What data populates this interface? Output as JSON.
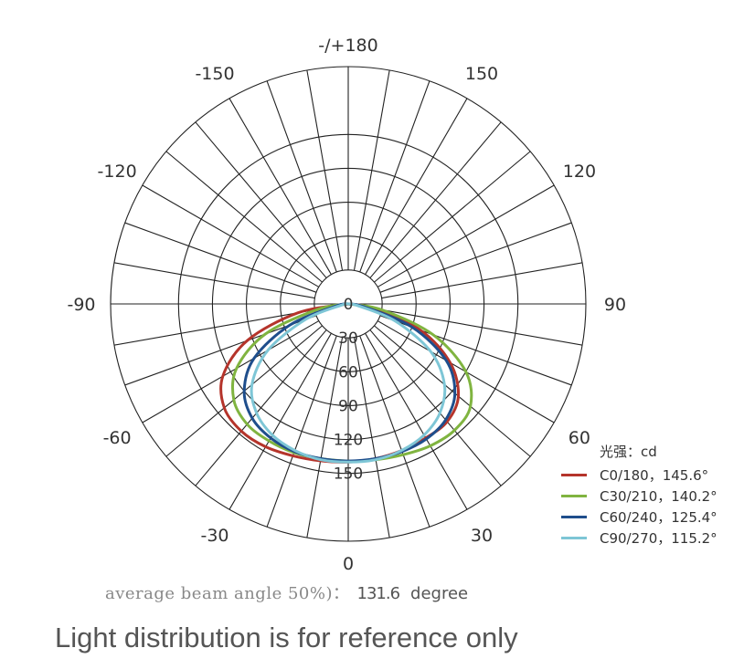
{
  "chart_data": {
    "type": "polar",
    "angle_ticks": [
      "-/+180",
      "150",
      "120",
      "90",
      "60",
      "30",
      "0",
      "-30",
      "-60",
      "-90",
      "-120",
      "-150"
    ],
    "radial_ticks": [
      0,
      30,
      60,
      90,
      120,
      150
    ],
    "radial_max": 210,
    "radial_tick_labels": [
      "0",
      "30",
      "60",
      "90",
      "120",
      "150"
    ],
    "angle_step": 10,
    "grid": true,
    "legend": {
      "title": "光强：cd",
      "placement": "bottom-right"
    },
    "series": [
      {
        "name": "C0/180，145.6°",
        "color": "#b5342b",
        "points": [
          {
            "angle": -90,
            "value": 0
          },
          {
            "angle": -80,
            "value": 45
          },
          {
            "angle": -70,
            "value": 95
          },
          {
            "angle": -60,
            "value": 128
          },
          {
            "angle": -50,
            "value": 143
          },
          {
            "angle": -40,
            "value": 147
          },
          {
            "angle": -30,
            "value": 146
          },
          {
            "angle": -20,
            "value": 143
          },
          {
            "angle": -10,
            "value": 141
          },
          {
            "angle": 0,
            "value": 140
          },
          {
            "angle": 10,
            "value": 139
          },
          {
            "angle": 20,
            "value": 138
          },
          {
            "angle": 30,
            "value": 137
          },
          {
            "angle": 40,
            "value": 136
          },
          {
            "angle": 50,
            "value": 127
          },
          {
            "angle": 60,
            "value": 104
          },
          {
            "angle": 70,
            "value": 68
          },
          {
            "angle": 80,
            "value": 22
          },
          {
            "angle": 90,
            "value": 0
          }
        ]
      },
      {
        "name": "C30/210，140.2°",
        "color": "#80b440",
        "points": [
          {
            "angle": -90,
            "value": 0
          },
          {
            "angle": -80,
            "value": 27
          },
          {
            "angle": -70,
            "value": 78
          },
          {
            "angle": -60,
            "value": 114
          },
          {
            "angle": -50,
            "value": 132
          },
          {
            "angle": -40,
            "value": 139
          },
          {
            "angle": -30,
            "value": 140
          },
          {
            "angle": -20,
            "value": 140
          },
          {
            "angle": -10,
            "value": 139
          },
          {
            "angle": 0,
            "value": 139
          },
          {
            "angle": 10,
            "value": 140
          },
          {
            "angle": 20,
            "value": 142
          },
          {
            "angle": 30,
            "value": 145
          },
          {
            "angle": 40,
            "value": 146
          },
          {
            "angle": 50,
            "value": 141
          },
          {
            "angle": 60,
            "value": 120
          },
          {
            "angle": 70,
            "value": 80
          },
          {
            "angle": 80,
            "value": 30
          },
          {
            "angle": 90,
            "value": 0
          }
        ]
      },
      {
        "name": "C60/240，125.4°",
        "color": "#1f4e8c",
        "points": [
          {
            "angle": -90,
            "value": 0
          },
          {
            "angle": -80,
            "value": 12
          },
          {
            "angle": -70,
            "value": 55
          },
          {
            "angle": -60,
            "value": 96
          },
          {
            "angle": -50,
            "value": 120
          },
          {
            "angle": -40,
            "value": 132
          },
          {
            "angle": -30,
            "value": 137
          },
          {
            "angle": -20,
            "value": 139
          },
          {
            "angle": -10,
            "value": 139
          },
          {
            "angle": 0,
            "value": 139
          },
          {
            "angle": 10,
            "value": 139
          },
          {
            "angle": 20,
            "value": 139
          },
          {
            "angle": 30,
            "value": 138
          },
          {
            "angle": 40,
            "value": 134
          },
          {
            "angle": 50,
            "value": 123
          },
          {
            "angle": 60,
            "value": 100
          },
          {
            "angle": 70,
            "value": 60
          },
          {
            "angle": 80,
            "value": 14
          },
          {
            "angle": 90,
            "value": 0
          }
        ]
      },
      {
        "name": "C90/270，115.2°",
        "color": "#7ec6d6",
        "points": [
          {
            "angle": -90,
            "value": 0
          },
          {
            "angle": -80,
            "value": 6
          },
          {
            "angle": -70,
            "value": 40
          },
          {
            "angle": -60,
            "value": 82
          },
          {
            "angle": -50,
            "value": 111
          },
          {
            "angle": -40,
            "value": 126
          },
          {
            "angle": -30,
            "value": 134
          },
          {
            "angle": -20,
            "value": 138
          },
          {
            "angle": -10,
            "value": 140
          },
          {
            "angle": 0,
            "value": 140
          },
          {
            "angle": 10,
            "value": 140
          },
          {
            "angle": 20,
            "value": 138
          },
          {
            "angle": 30,
            "value": 134
          },
          {
            "angle": 40,
            "value": 126
          },
          {
            "angle": 50,
            "value": 111
          },
          {
            "angle": 60,
            "value": 84
          },
          {
            "angle": 70,
            "value": 44
          },
          {
            "angle": 80,
            "value": 8
          },
          {
            "angle": 90,
            "value": 0
          }
        ]
      }
    ]
  },
  "beam_note": {
    "text": "average beam angle 50%)：",
    "value": "131.6",
    "unit": "degree"
  },
  "footer": "Light distribution is for reference only"
}
